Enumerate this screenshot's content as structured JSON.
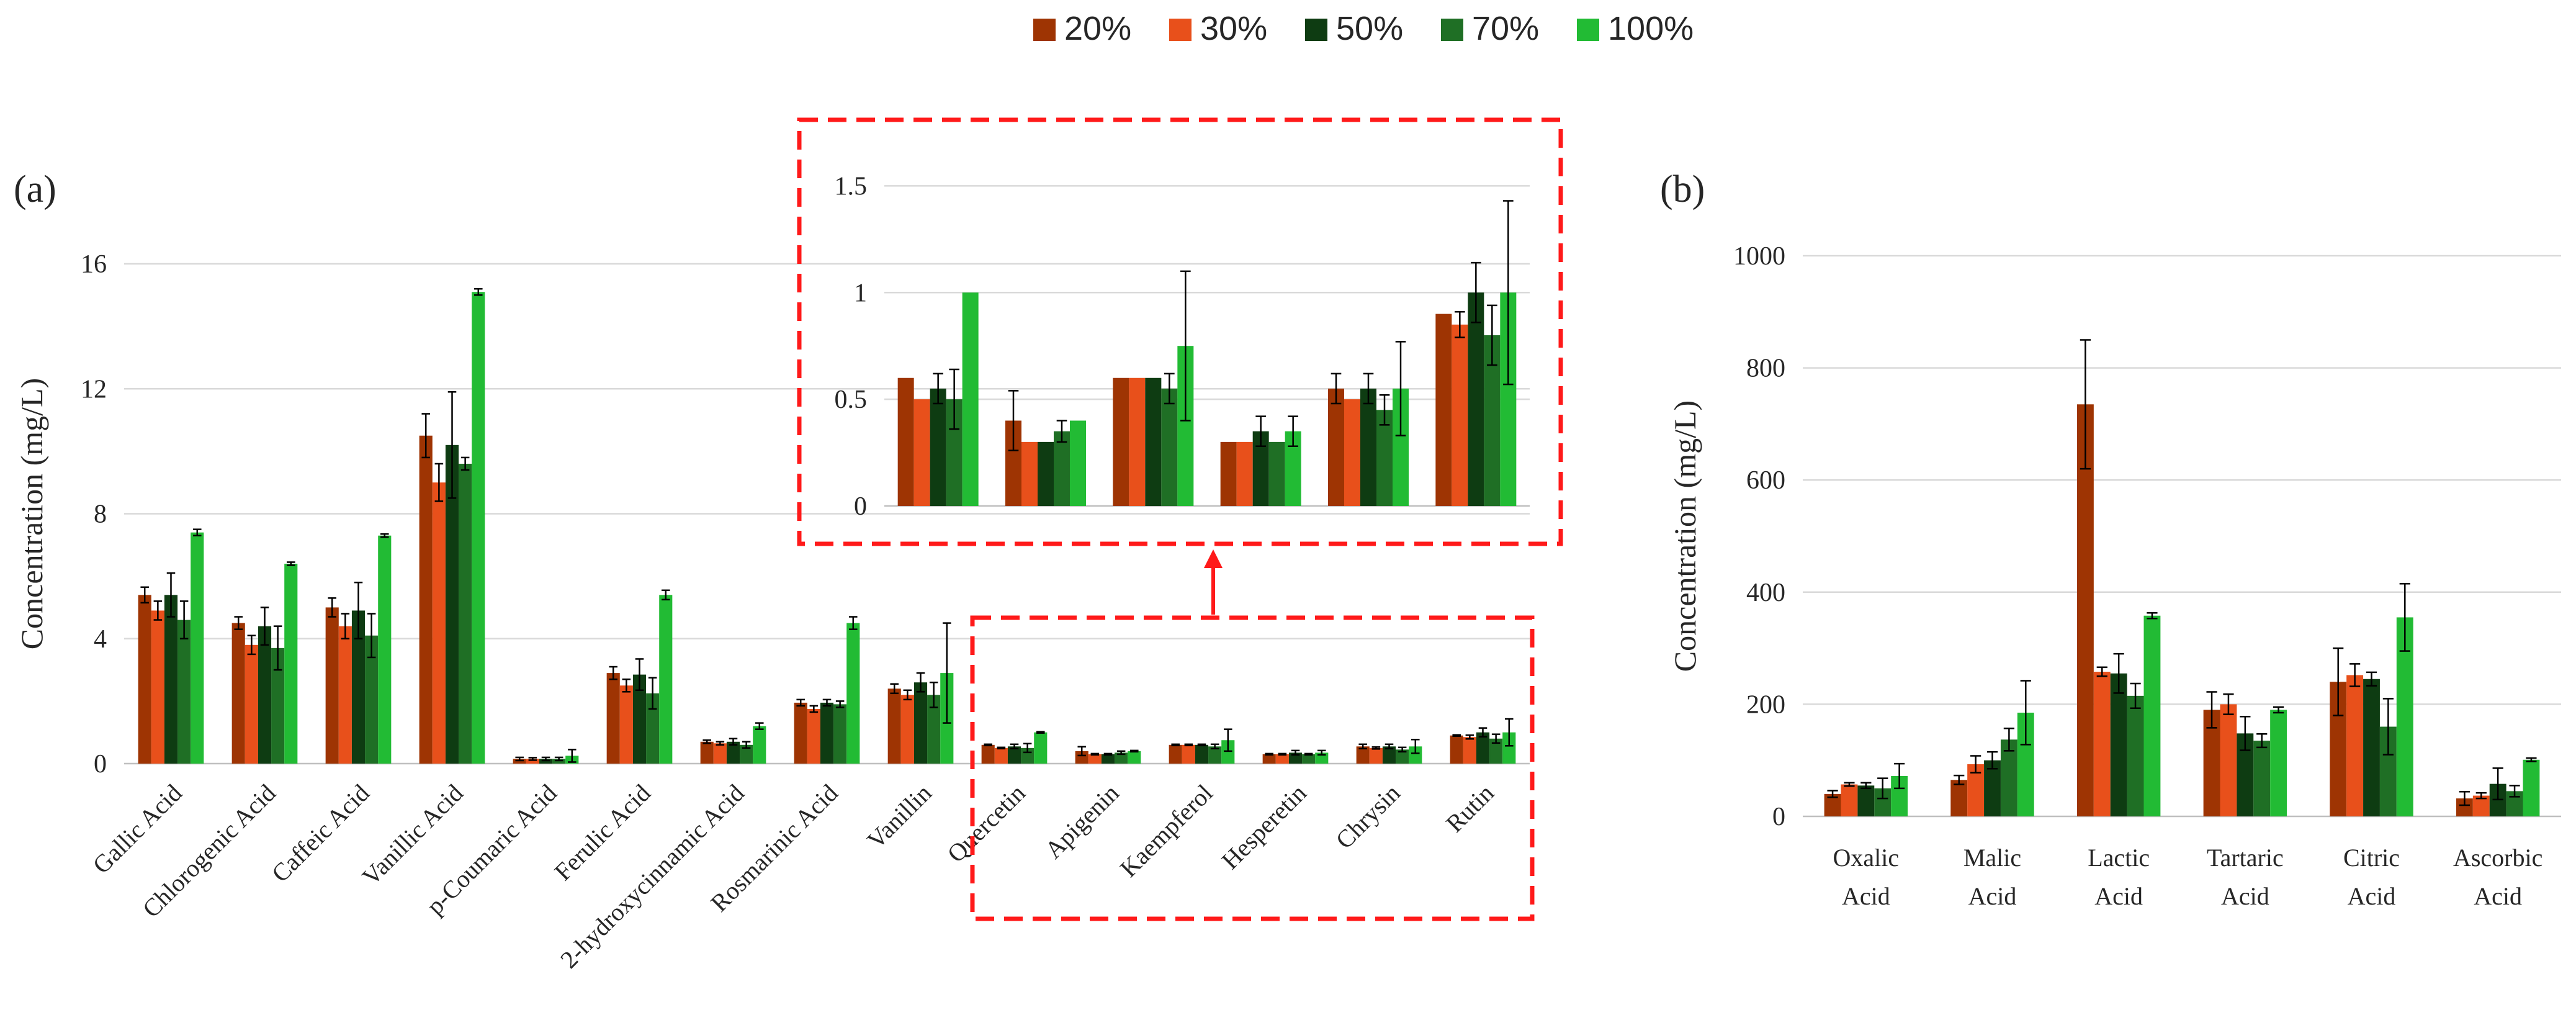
{
  "legend": [
    "20%",
    "30%",
    "50%",
    "70%",
    "100%"
  ],
  "colors": [
    "#9E3403",
    "#E8501B",
    "#0E3C12",
    "#1F6F25",
    "#22BB34"
  ],
  "chart_data": [
    {
      "type": "bar",
      "panel_label": "(a)",
      "title": "",
      "ylabel": "Concentration (mg/L)",
      "ylim": [
        0,
        16
      ],
      "yticks": [
        "0",
        "4",
        "8",
        "12",
        "16"
      ],
      "ytick_values": [
        0,
        4,
        8,
        12,
        16
      ],
      "categories": [
        "Gallic Acid",
        "Chlorogenic Acid",
        "Caffeic Acid",
        "Vanillic Acid",
        "p-Coumaric Acid",
        "Ferulic Acid",
        "2-hydroxycinnamic Acid",
        "Rosmarinic Acid",
        "Vanillin",
        "Quercetin",
        "Apigenin",
        "Kaempferol",
        "Hesperetin",
        "Chrysin",
        "Rutin"
      ],
      "series": [
        {
          "name": "20%",
          "values": [
            5.4,
            4.5,
            5.0,
            10.5,
            0.15,
            2.9,
            0.7,
            1.95,
            2.4,
            0.6,
            0.4,
            0.6,
            0.3,
            0.55,
            0.9
          ],
          "errors": [
            0.25,
            0.2,
            0.3,
            0.7,
            0.05,
            0.2,
            0.05,
            0.1,
            0.15,
            0.02,
            0.14,
            0.02,
            0.02,
            0.07,
            0.02
          ]
        },
        {
          "name": "30%",
          "values": [
            4.9,
            3.8,
            4.4,
            9.0,
            0.15,
            2.5,
            0.65,
            1.75,
            2.2,
            0.5,
            0.3,
            0.6,
            0.3,
            0.5,
            0.85
          ],
          "errors": [
            0.3,
            0.3,
            0.4,
            0.6,
            0.04,
            0.2,
            0.05,
            0.1,
            0.15,
            0.02,
            0.02,
            0.02,
            0.02,
            0.03,
            0.06
          ]
        },
        {
          "name": "50%",
          "values": [
            5.4,
            4.4,
            4.9,
            10.2,
            0.15,
            2.85,
            0.7,
            1.95,
            2.6,
            0.55,
            0.3,
            0.6,
            0.35,
            0.55,
            1.0
          ],
          "errors": [
            0.7,
            0.6,
            0.9,
            1.7,
            0.05,
            0.5,
            0.1,
            0.1,
            0.3,
            0.07,
            0.02,
            0.02,
            0.07,
            0.07,
            0.14
          ]
        },
        {
          "name": "70%",
          "values": [
            4.6,
            3.7,
            4.1,
            9.6,
            0.15,
            2.25,
            0.6,
            1.9,
            2.2,
            0.5,
            0.35,
            0.55,
            0.3,
            0.45,
            0.8
          ],
          "errors": [
            0.6,
            0.7,
            0.7,
            0.2,
            0.05,
            0.5,
            0.1,
            0.1,
            0.4,
            0.14,
            0.05,
            0.07,
            0.02,
            0.07,
            0.14
          ]
        },
        {
          "name": "100%",
          "values": [
            7.4,
            6.4,
            7.3,
            15.1,
            0.25,
            5.4,
            1.2,
            4.5,
            2.9,
            1.0,
            0.4,
            0.75,
            0.35,
            0.55,
            1.0
          ],
          "errors": [
            0.1,
            0.05,
            0.05,
            0.1,
            0.2,
            0.15,
            0.1,
            0.2,
            1.6,
            0.02,
            0.02,
            0.35,
            0.07,
            0.22,
            0.43
          ]
        }
      ]
    },
    {
      "type": "bar",
      "panel_label": "",
      "title": "",
      "ylabel": "",
      "ylim": [
        0,
        1.6
      ],
      "yticks": [
        "0",
        "0.5",
        "1",
        "1.5"
      ],
      "ytick_values": [
        0,
        0.5,
        1,
        1.5
      ],
      "categories": [
        "Quercetin",
        "Apigenin",
        "Kaempferol",
        "Hesperetin",
        "Chrysin",
        "Rutin"
      ],
      "series": [
        {
          "name": "20%",
          "values": [
            0.6,
            0.4,
            0.6,
            0.3,
            0.55,
            0.9
          ],
          "errors": [
            0.0,
            0.14,
            0.0,
            0.0,
            0.07,
            0.0
          ]
        },
        {
          "name": "30%",
          "values": [
            0.5,
            0.3,
            0.6,
            0.3,
            0.5,
            0.85
          ],
          "errors": [
            0.0,
            0.0,
            0.0,
            0.0,
            0.0,
            0.06
          ]
        },
        {
          "name": "50%",
          "values": [
            0.55,
            0.3,
            0.6,
            0.35,
            0.55,
            1.0
          ],
          "errors": [
            0.07,
            0.0,
            0.0,
            0.07,
            0.07,
            0.14
          ]
        },
        {
          "name": "70%",
          "values": [
            0.5,
            0.35,
            0.55,
            0.3,
            0.45,
            0.8
          ],
          "errors": [
            0.14,
            0.05,
            0.07,
            0.0,
            0.07,
            0.14
          ]
        },
        {
          "name": "100%",
          "values": [
            1.0,
            0.4,
            0.75,
            0.35,
            0.55,
            1.0
          ],
          "errors": [
            0.0,
            0.0,
            0.35,
            0.07,
            0.22,
            0.43
          ]
        }
      ]
    },
    {
      "type": "bar",
      "panel_label": "(b)",
      "title": "",
      "ylabel": "Concentration (mg/L)",
      "ylim": [
        0,
        1000
      ],
      "yticks": [
        "0",
        "200",
        "400",
        "600",
        "800",
        "1000"
      ],
      "ytick_values": [
        0,
        200,
        400,
        600,
        800,
        1000
      ],
      "categories": [
        "Oxalic Acid",
        "Malic Acid",
        "Lactic Acid",
        "Tartaric Acid",
        "Citric Acid",
        "Ascorbic Acid"
      ],
      "category_lines": [
        [
          "Oxalic",
          "Acid"
        ],
        [
          "Malic",
          "Acid"
        ],
        [
          "Lactic",
          "Acid"
        ],
        [
          "Tartaric",
          "Acid"
        ],
        [
          "Citric",
          "Acid"
        ],
        [
          "Ascorbic",
          "Acid"
        ]
      ],
      "series": [
        {
          "name": "20%",
          "values": [
            40,
            65,
            735,
            190,
            240,
            32
          ],
          "errors": [
            6,
            8,
            115,
            32,
            60,
            12
          ]
        },
        {
          "name": "30%",
          "values": [
            57,
            93,
            258,
            200,
            252,
            37
          ],
          "errors": [
            3,
            15,
            8,
            18,
            20,
            5
          ]
        },
        {
          "name": "50%",
          "values": [
            55,
            100,
            255,
            148,
            245,
            58
          ],
          "errors": [
            5,
            15,
            35,
            30,
            12,
            28
          ]
        },
        {
          "name": "70%",
          "values": [
            50,
            137,
            215,
            135,
            160,
            45
          ],
          "errors": [
            18,
            20,
            22,
            12,
            50,
            10
          ]
        },
        {
          "name": "100%",
          "values": [
            72,
            185,
            358,
            190,
            355,
            101
          ],
          "errors": [
            22,
            57,
            5,
            5,
            60,
            3
          ]
        }
      ]
    }
  ]
}
